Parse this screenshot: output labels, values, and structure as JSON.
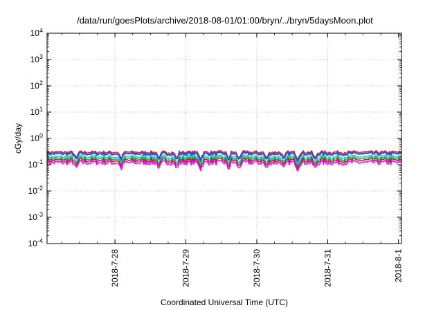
{
  "chart_data": {
    "type": "line",
    "title": "/data/run/goesPlots/archive/2018-08-01/01:00/bryn/../bryn/5daysMoon.plot",
    "xlabel": "Coordinated Universal Time (UTC)",
    "ylabel": "cGy/day",
    "y_scale": "log",
    "ylim": [
      0.0001,
      10000
    ],
    "y_ticks": [
      {
        "value": 0.0001,
        "base": "10",
        "exp": "-4"
      },
      {
        "value": 0.001,
        "base": "10",
        "exp": "-3"
      },
      {
        "value": 0.01,
        "base": "10",
        "exp": "-2"
      },
      {
        "value": 0.1,
        "base": "10",
        "exp": "-1"
      },
      {
        "value": 1,
        "base": "10",
        "exp": "0"
      },
      {
        "value": 10,
        "base": "10",
        "exp": "1"
      },
      {
        "value": 100,
        "base": "10",
        "exp": "2"
      },
      {
        "value": 1000,
        "base": "10",
        "exp": "3"
      },
      {
        "value": 10000,
        "base": "10",
        "exp": "4"
      }
    ],
    "xlim": [
      "2018-07-27 01:00",
      "2018-08-01 01:00"
    ],
    "x_ticks": [
      "2018-7-28",
      "2018-7-29",
      "2018-7-30",
      "2018-7-31",
      "2018-8-1"
    ],
    "grid": true,
    "series": [
      {
        "color": "#e8222a",
        "level": 0.3
      },
      {
        "color": "#2a4fd8",
        "level": 0.26
      },
      {
        "color": "#20c8d8",
        "level": 0.2
      },
      {
        "color": "#2fa84a",
        "level": 0.17
      },
      {
        "color": "#a0282a",
        "level": 0.145
      },
      {
        "color": "#ff00ff",
        "level": 0.12
      }
    ]
  }
}
